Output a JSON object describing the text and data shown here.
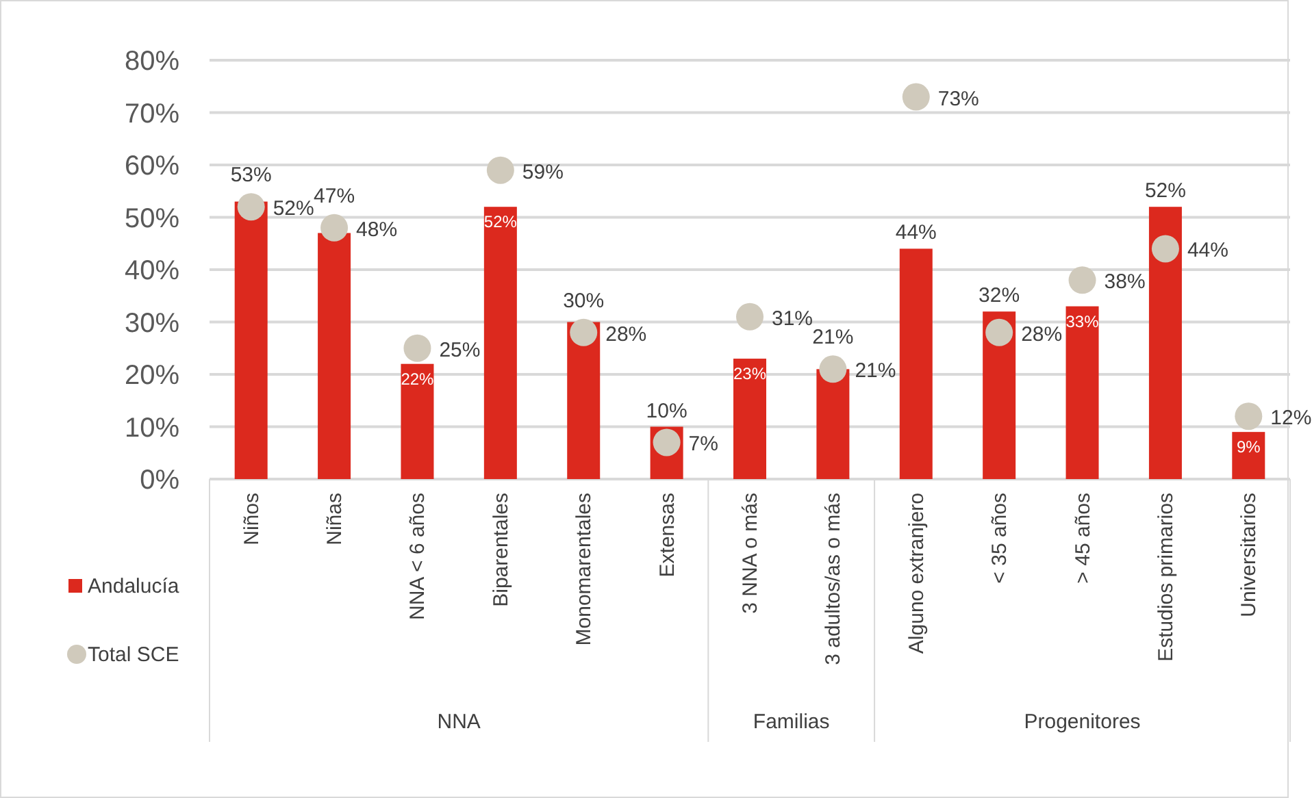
{
  "chart_data": {
    "type": "bar",
    "categories": [
      "Niños",
      "Niñas",
      "NNA < 6 años",
      "Biparentales",
      "Monomarentales",
      "Extensas",
      "3 NNA o más",
      "3 adultos/as o más",
      "Alguno extranjero",
      "< 35 años",
      "> 45 años",
      "Estudios primarios",
      "Universitarios"
    ],
    "series": [
      {
        "name": "Andalucía",
        "color": "#dc291e",
        "values": [
          53,
          47,
          22,
          52,
          30,
          10,
          23,
          21,
          44,
          32,
          33,
          52,
          9
        ],
        "value_labels": [
          "53%",
          "47%",
          "22%",
          "52%",
          "30%",
          "10%",
          "23%",
          "21%",
          "44%",
          "32%",
          "33%",
          "52%",
          "9%"
        ]
      },
      {
        "name": "Total SCE",
        "type": "scatter",
        "color": "#d0cabc",
        "marker": "circle",
        "values": [
          52,
          48,
          25,
          59,
          28,
          7,
          31,
          21,
          73,
          28,
          38,
          44,
          12
        ],
        "value_labels": [
          "52%",
          "48%",
          "25%",
          "59%",
          "28%",
          "7%",
          "31%",
          "21%",
          "73%",
          "28%",
          "38%",
          "44%",
          "12%"
        ]
      }
    ],
    "ylim": [
      0,
      80
    ],
    "yticks": [
      {
        "value": 0,
        "label": "0%"
      },
      {
        "value": 10,
        "label": "10%"
      },
      {
        "value": 20,
        "label": "20%"
      },
      {
        "value": 30,
        "label": "30%"
      },
      {
        "value": 40,
        "label": "40%"
      },
      {
        "value": 50,
        "label": "50%"
      },
      {
        "value": 60,
        "label": "60%"
      },
      {
        "value": 70,
        "label": "70%"
      },
      {
        "value": 80,
        "label": "80%"
      }
    ],
    "grid": "y",
    "legend": "left",
    "annotations": [
      "NNA",
      "Familias",
      "Progenitores"
    ]
  }
}
